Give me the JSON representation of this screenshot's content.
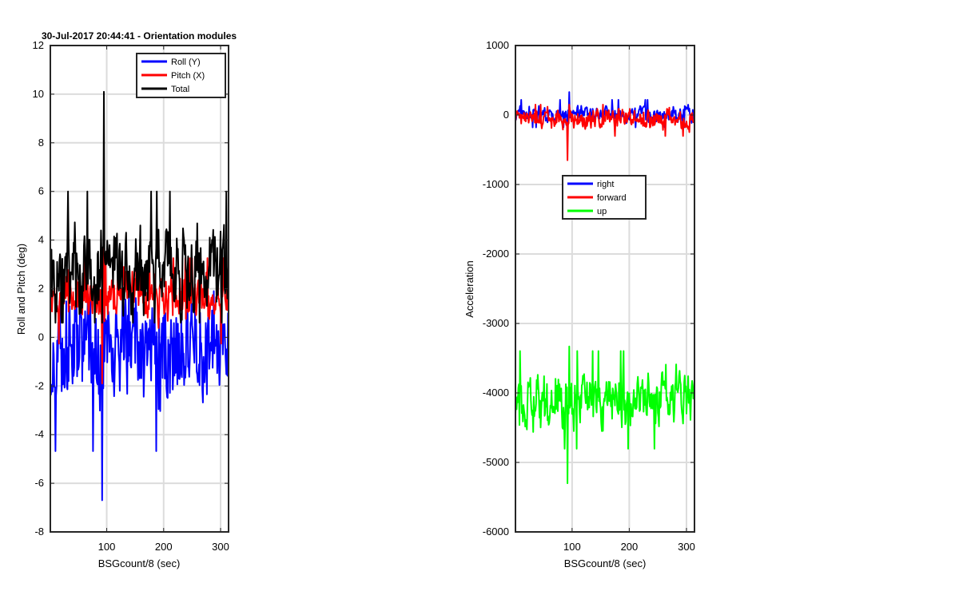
{
  "chart_data": [
    {
      "type": "line",
      "title": "30-Jul-2017 20:44:41 - Orientation modules",
      "xlabel": "BSGcount/8 (sec)",
      "ylabel": "Roll and Pitch (deg)",
      "xlim": [
        1,
        314
      ],
      "ylim": [
        -8,
        12
      ],
      "xticks": [
        100,
        200,
        300
      ],
      "yticks": [
        -8,
        -6,
        -4,
        -2,
        0,
        2,
        4,
        6,
        8,
        10,
        12
      ],
      "grid": true,
      "legend": "top-right",
      "series": [
        {
          "name": "Roll (Y)",
          "color": "#0000ff",
          "mean": -0.5,
          "amplitude": 1.9,
          "min": -6.7,
          "max": 1.9
        },
        {
          "name": "Pitch (X)",
          "color": "#ff0000",
          "mean": 1.5,
          "amplitude": 0.8,
          "min": -1.9,
          "max": 4.2
        },
        {
          "name": "Total",
          "color": "#000000",
          "mean": 2.7,
          "amplitude": 1.5,
          "min": 0.6,
          "max": 10.1
        }
      ]
    },
    {
      "type": "line",
      "title": "",
      "xlabel": "BSGcount/8 (sec)",
      "ylabel": "Acceleration",
      "xlim": [
        1,
        314
      ],
      "ylim": [
        -6000,
        1000
      ],
      "xticks": [
        100,
        200,
        300
      ],
      "yticks": [
        -6000,
        -5000,
        -4000,
        -3000,
        -2000,
        -1000,
        0,
        1000
      ],
      "grid": true,
      "legend": "upper-center",
      "series": [
        {
          "name": "right",
          "color": "#0000ff",
          "mean": 20,
          "amplitude": 90,
          "min": -300,
          "max": 330
        },
        {
          "name": "forward",
          "color": "#ff0000",
          "mean": -60,
          "amplitude": 110,
          "min": -650,
          "max": 150
        },
        {
          "name": "up",
          "color": "#00ff00",
          "mean": -4100,
          "amplitude": 320,
          "min": -5300,
          "max": -3330
        }
      ]
    }
  ]
}
